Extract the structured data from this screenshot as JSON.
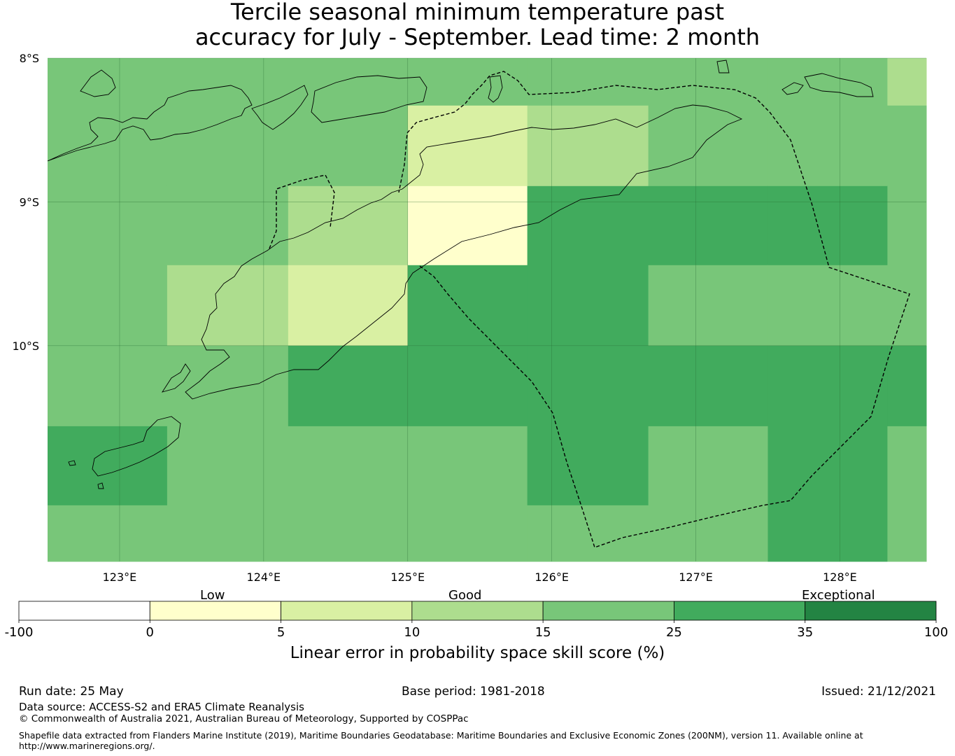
{
  "title": {
    "line1": "Tercile seasonal minimum temperature past",
    "line2": "accuracy for July - September. Lead time: 2 month"
  },
  "map": {
    "lon_ticks": [
      "123°E",
      "124°E",
      "125°E",
      "126°E",
      "127°E",
      "128°E"
    ],
    "lat_ticks": [
      "8°S",
      "9°S",
      "10°S"
    ],
    "lon_range": [
      122.5,
      128.6
    ],
    "lat_range": [
      -8.0,
      -11.5
    ],
    "cell_size_deg": 0.833,
    "grid_lon_edges": [
      122.5,
      123.33,
      124.17,
      125.0,
      125.83,
      126.67,
      127.5,
      128.33,
      128.6
    ],
    "grid_lat_edges": [
      -8.0,
      -8.33,
      -8.89,
      -9.44,
      -10.0,
      -10.56,
      -11.11,
      -11.5
    ],
    "skill_grid": [
      [
        20,
        20,
        20,
        20,
        20,
        20,
        20,
        12
      ],
      [
        20,
        20,
        20,
        7,
        12,
        20,
        20,
        20
      ],
      [
        20,
        20,
        12,
        2,
        30,
        30,
        30,
        20
      ],
      [
        20,
        12,
        7,
        30,
        30,
        20,
        20,
        20
      ],
      [
        20,
        20,
        30,
        30,
        30,
        30,
        30,
        30
      ],
      [
        30,
        20,
        20,
        20,
        30,
        20,
        30,
        20
      ],
      [
        20,
        20,
        20,
        20,
        20,
        20,
        30,
        20
      ]
    ]
  },
  "legend": {
    "category_labels": [
      "Low",
      "Good",
      "Exceptional"
    ],
    "bin_colors": [
      "#ffffff",
      "#ffffcc",
      "#d9f0a3",
      "#addd8e",
      "#78c679",
      "#41ab5d",
      "#238443"
    ],
    "bin_edges": [
      "-100",
      "0",
      "5",
      "10",
      "15",
      "25",
      "35",
      "100"
    ],
    "axis_label": "Linear error in probability space skill score (%)"
  },
  "footer": {
    "run_date": "Run date: 25 May",
    "base_period": "Base period: 1981-2018",
    "issued": "Issued: 21/12/2021",
    "data_source": "Data source: ACCESS-S2 and ERA5 Climate Reanalysis",
    "copyright": "© Commonwealth of Australia 2021, Australian Bureau of Meteorology, Supported by COSPPac",
    "shapefile_line1": "Shapefile data extracted from Flanders Marine Institute (2019), Maritime Boundaries Geodatabase: Maritime Boundaries and Exclusive Economic Zones (200NM), version 11. Available online at",
    "shapefile_line2": "http://www.marineregions.org/."
  }
}
